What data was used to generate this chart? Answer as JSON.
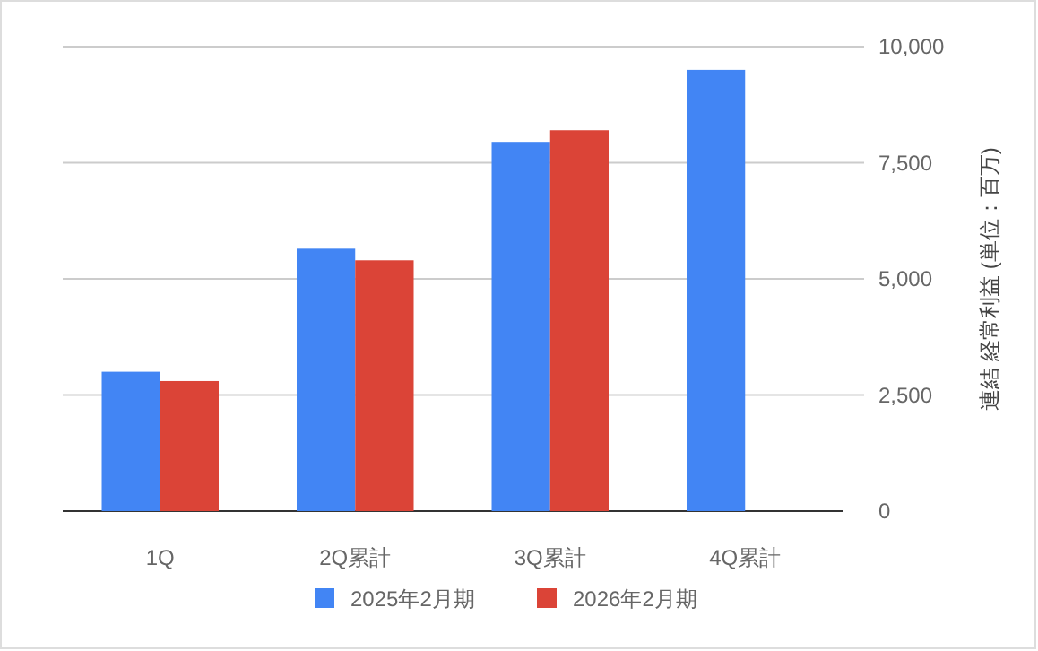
{
  "chart_data": {
    "type": "bar",
    "categories": [
      "1Q",
      "2Q累計",
      "3Q累計",
      "4Q累計"
    ],
    "series": [
      {
        "name": "2025年2月期",
        "color": "#4285f4",
        "values": [
          3000,
          5650,
          7950,
          9500
        ]
      },
      {
        "name": "2026年2月期",
        "color": "#db4437",
        "values": [
          2800,
          5400,
          8200,
          null
        ]
      }
    ],
    "ylabel": "連結 経常利益 (単位：百万)",
    "ylim": [
      0,
      10000
    ],
    "yticks": [
      0,
      {
        "value": 2500,
        "label": "2,500"
      },
      {
        "value": 5000,
        "label": "5,000"
      },
      {
        "value": 7500,
        "label": "7,500"
      },
      {
        "value": 10000,
        "label": "10,000"
      }
    ],
    "grid": "y",
    "legend": "bottom"
  }
}
